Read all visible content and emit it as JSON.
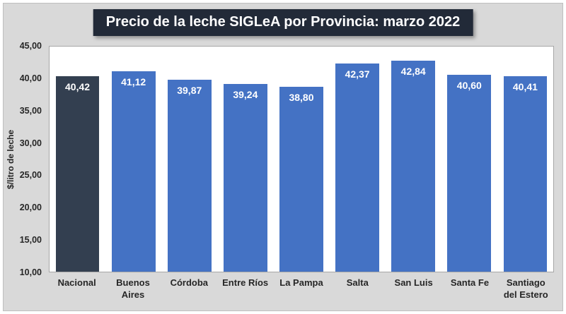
{
  "colors": {
    "title_bg": "#222A38",
    "bar_default": "#4472C4",
    "bar_highlight": "#333F50",
    "canvas_bg": "#D9D9D9",
    "plot_bg": "#FFFFFF"
  },
  "chart_data": {
    "type": "bar",
    "title": "Precio de la leche SIGLeA por Provincia: marzo 2022",
    "categories": [
      "Nacional",
      "Buenos Aires",
      "Córdoba",
      "Entre Ríos",
      "La Pampa",
      "Salta",
      "San Luis",
      "Santa Fe",
      "Santiago del Estero"
    ],
    "values": [
      40.42,
      41.12,
      39.87,
      39.24,
      38.8,
      42.37,
      42.84,
      40.6,
      40.41
    ],
    "value_labels": [
      "40,42",
      "41,12",
      "39,87",
      "39,24",
      "38,80",
      "42,37",
      "42,84",
      "40,60",
      "40,41"
    ],
    "xlabel": "",
    "ylabel": "$/litro de leche",
    "ylim": [
      10,
      45
    ],
    "yticks": {
      "values": [
        10,
        15,
        20,
        25,
        30,
        35,
        40,
        45
      ],
      "labels": [
        "10,00",
        "15,00",
        "20,00",
        "25,00",
        "30,00",
        "35,00",
        "40,00",
        "45,00"
      ]
    },
    "highlight_index": 0,
    "grid": false,
    "legend": false
  }
}
